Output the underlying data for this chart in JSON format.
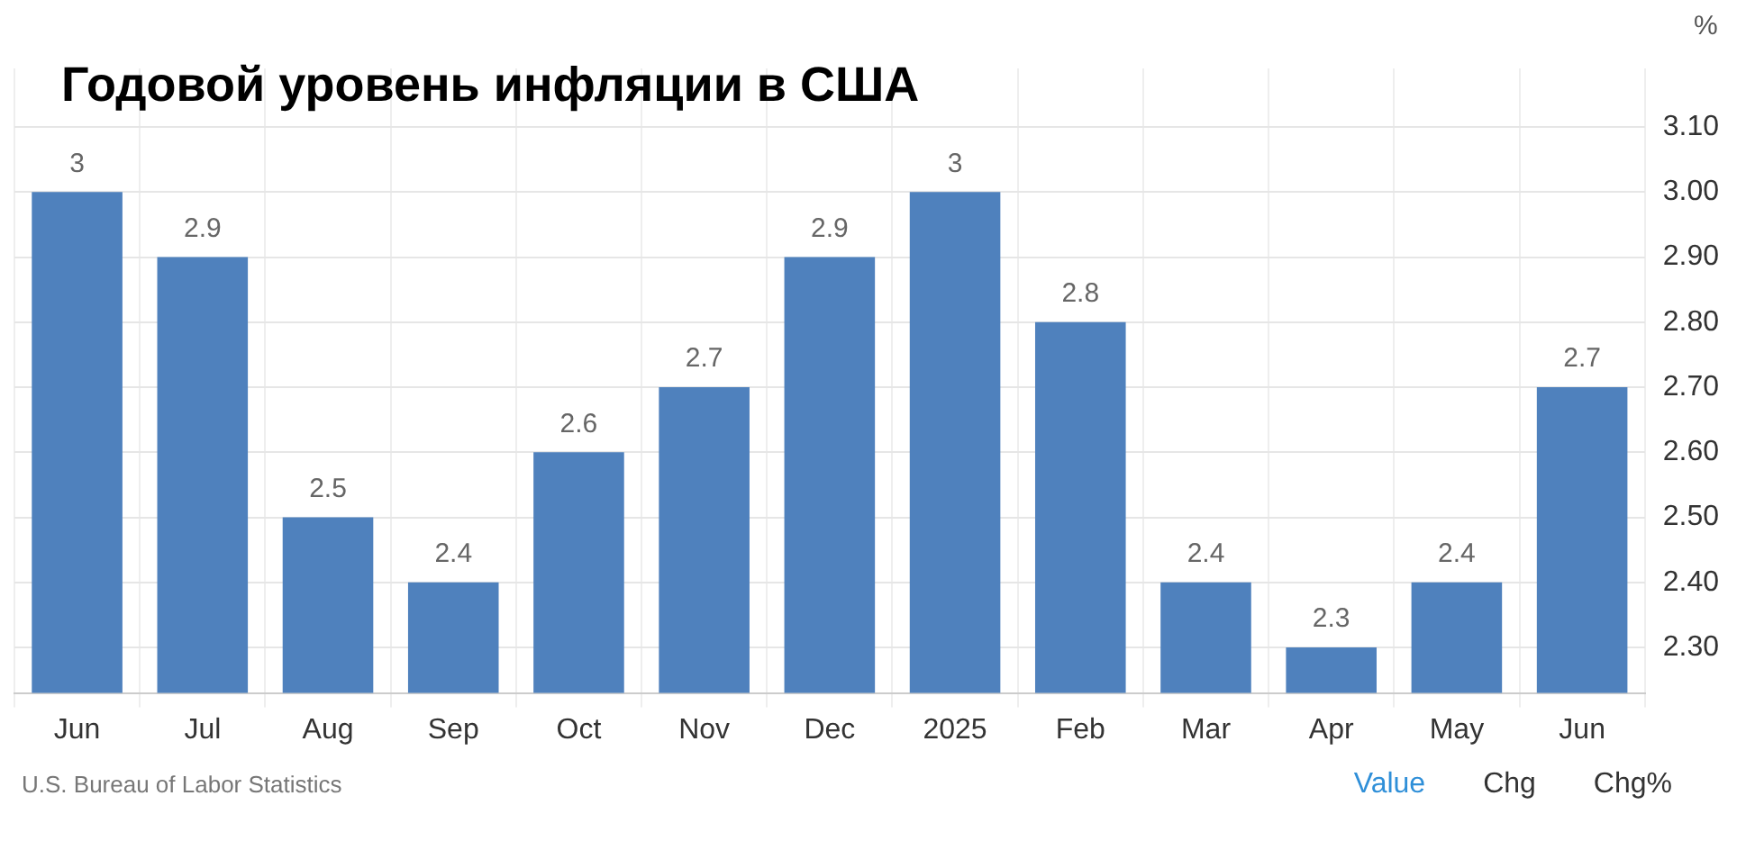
{
  "chart_data": {
    "type": "bar",
    "title": "Годовой уровень инфляции в США",
    "ylabel": "%",
    "categories": [
      "Jun",
      "Jul",
      "Aug",
      "Sep",
      "Oct",
      "Nov",
      "Dec",
      "2025",
      "Feb",
      "Mar",
      "Apr",
      "May",
      "Jun"
    ],
    "values": [
      3,
      2.9,
      2.5,
      2.4,
      2.6,
      2.7,
      2.9,
      3,
      2.8,
      2.4,
      2.3,
      2.4,
      2.7
    ],
    "color": "#4f81bd",
    "ylim": [
      2.23,
      3.19
    ],
    "yticks": [
      {
        "value": 2.3,
        "label": "2.30"
      },
      {
        "value": 2.4,
        "label": "2.40"
      },
      {
        "value": 2.5,
        "label": "2.50"
      },
      {
        "value": 2.6,
        "label": "2.60"
      },
      {
        "value": 2.7,
        "label": "2.70"
      },
      {
        "value": 2.8,
        "label": "2.80"
      },
      {
        "value": 2.9,
        "label": "2.90"
      },
      {
        "value": 3,
        "label": "3.00"
      },
      {
        "value": 3.1,
        "label": "3.10"
      }
    ],
    "grid": true,
    "legend": false,
    "data_labels": true,
    "annotations": [
      "U.S. Bureau of Labor Statistics",
      "Value",
      "Chg",
      "Chg%"
    ]
  }
}
